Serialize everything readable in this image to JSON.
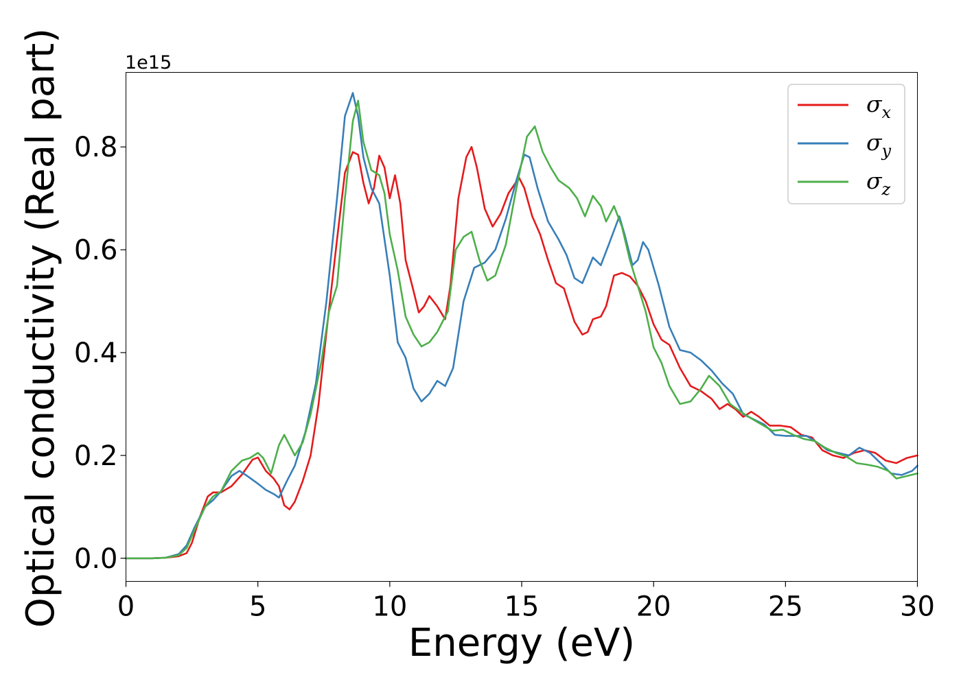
{
  "chart_data": {
    "type": "line",
    "title": "",
    "xlabel": "Energy (eV)",
    "ylabel": "Optical conductivity (Real part)",
    "offset_label": "1e15",
    "y_multiplier": 1000000000000000.0,
    "xlim": [
      0,
      30
    ],
    "ylim": [
      -0.045,
      0.945
    ],
    "x_ticks": [
      0,
      5,
      10,
      15,
      20,
      25,
      30
    ],
    "x_tick_labels": [
      "0",
      "5",
      "10",
      "15",
      "20",
      "25",
      "30"
    ],
    "y_ticks": [
      0.0,
      0.2,
      0.4,
      0.6,
      0.8
    ],
    "y_tick_labels": [
      "0.0",
      "0.2",
      "0.4",
      "0.6",
      "0.8"
    ],
    "grid": false,
    "legend_position": "top-right",
    "series": [
      {
        "name": "σ",
        "subscript": "x",
        "color": "#e41a1c",
        "points": [
          [
            0,
            0
          ],
          [
            1,
            0
          ],
          [
            1.5,
            0.001
          ],
          [
            2,
            0.004
          ],
          [
            2.3,
            0.01
          ],
          [
            2.5,
            0.03
          ],
          [
            2.8,
            0.08
          ],
          [
            3.1,
            0.12
          ],
          [
            3.3,
            0.128
          ],
          [
            3.6,
            0.128
          ],
          [
            4,
            0.14
          ],
          [
            4.4,
            0.163
          ],
          [
            4.8,
            0.192
          ],
          [
            5,
            0.196
          ],
          [
            5.3,
            0.17
          ],
          [
            5.6,
            0.155
          ],
          [
            5.8,
            0.14
          ],
          [
            6,
            0.103
          ],
          [
            6.2,
            0.095
          ],
          [
            6.4,
            0.11
          ],
          [
            6.7,
            0.15
          ],
          [
            7,
            0.2
          ],
          [
            7.3,
            0.3
          ],
          [
            7.6,
            0.44
          ],
          [
            8,
            0.62
          ],
          [
            8.3,
            0.75
          ],
          [
            8.6,
            0.79
          ],
          [
            8.8,
            0.785
          ],
          [
            9,
            0.73
          ],
          [
            9.2,
            0.69
          ],
          [
            9.4,
            0.72
          ],
          [
            9.6,
            0.783
          ],
          [
            9.8,
            0.76
          ],
          [
            10,
            0.7
          ],
          [
            10.2,
            0.745
          ],
          [
            10.4,
            0.69
          ],
          [
            10.6,
            0.58
          ],
          [
            10.9,
            0.52
          ],
          [
            11.1,
            0.478
          ],
          [
            11.3,
            0.49
          ],
          [
            11.5,
            0.51
          ],
          [
            11.8,
            0.49
          ],
          [
            12.1,
            0.465
          ],
          [
            12.3,
            0.53
          ],
          [
            12.6,
            0.7
          ],
          [
            12.9,
            0.78
          ],
          [
            13.1,
            0.8
          ],
          [
            13.3,
            0.76
          ],
          [
            13.6,
            0.68
          ],
          [
            13.9,
            0.645
          ],
          [
            14.2,
            0.67
          ],
          [
            14.5,
            0.71
          ],
          [
            14.9,
            0.74
          ],
          [
            15.1,
            0.72
          ],
          [
            15.4,
            0.665
          ],
          [
            15.7,
            0.63
          ],
          [
            16,
            0.58
          ],
          [
            16.3,
            0.535
          ],
          [
            16.6,
            0.525
          ],
          [
            17,
            0.46
          ],
          [
            17.3,
            0.435
          ],
          [
            17.5,
            0.44
          ],
          [
            17.7,
            0.465
          ],
          [
            18,
            0.47
          ],
          [
            18.2,
            0.49
          ],
          [
            18.5,
            0.55
          ],
          [
            18.8,
            0.555
          ],
          [
            19.1,
            0.548
          ],
          [
            19.4,
            0.53
          ],
          [
            19.7,
            0.5
          ],
          [
            20,
            0.455
          ],
          [
            20.3,
            0.425
          ],
          [
            20.6,
            0.415
          ],
          [
            21,
            0.37
          ],
          [
            21.4,
            0.335
          ],
          [
            21.8,
            0.325
          ],
          [
            22.2,
            0.31
          ],
          [
            22.5,
            0.29
          ],
          [
            22.8,
            0.3
          ],
          [
            23.1,
            0.29
          ],
          [
            23.4,
            0.275
          ],
          [
            23.7,
            0.285
          ],
          [
            24,
            0.275
          ],
          [
            24.4,
            0.258
          ],
          [
            24.8,
            0.258
          ],
          [
            25.2,
            0.255
          ],
          [
            25.6,
            0.24
          ],
          [
            26,
            0.235
          ],
          [
            26.4,
            0.21
          ],
          [
            26.8,
            0.2
          ],
          [
            27.2,
            0.195
          ],
          [
            27.6,
            0.205
          ],
          [
            28,
            0.21
          ],
          [
            28.4,
            0.205
          ],
          [
            28.8,
            0.19
          ],
          [
            29.2,
            0.185
          ],
          [
            29.6,
            0.195
          ],
          [
            30,
            0.2
          ]
        ]
      },
      {
        "name": "σ",
        "subscript": "y",
        "color": "#377eb8",
        "points": [
          [
            0,
            0
          ],
          [
            1,
            0
          ],
          [
            1.5,
            0.001
          ],
          [
            2,
            0.008
          ],
          [
            2.3,
            0.025
          ],
          [
            2.6,
            0.06
          ],
          [
            3,
            0.1
          ],
          [
            3.3,
            0.113
          ],
          [
            3.6,
            0.13
          ],
          [
            4,
            0.16
          ],
          [
            4.3,
            0.17
          ],
          [
            4.6,
            0.16
          ],
          [
            5,
            0.145
          ],
          [
            5.3,
            0.133
          ],
          [
            5.6,
            0.125
          ],
          [
            5.8,
            0.118
          ],
          [
            6.1,
            0.15
          ],
          [
            6.4,
            0.18
          ],
          [
            6.8,
            0.245
          ],
          [
            7.2,
            0.34
          ],
          [
            7.6,
            0.5
          ],
          [
            8,
            0.7
          ],
          [
            8.3,
            0.86
          ],
          [
            8.6,
            0.905
          ],
          [
            8.8,
            0.86
          ],
          [
            9,
            0.78
          ],
          [
            9.3,
            0.72
          ],
          [
            9.6,
            0.69
          ],
          [
            10,
            0.55
          ],
          [
            10.3,
            0.42
          ],
          [
            10.6,
            0.39
          ],
          [
            10.9,
            0.33
          ],
          [
            11.2,
            0.305
          ],
          [
            11.5,
            0.32
          ],
          [
            11.8,
            0.345
          ],
          [
            12.1,
            0.335
          ],
          [
            12.4,
            0.37
          ],
          [
            12.8,
            0.5
          ],
          [
            13.2,
            0.565
          ],
          [
            13.6,
            0.575
          ],
          [
            14,
            0.6
          ],
          [
            14.4,
            0.66
          ],
          [
            14.8,
            0.735
          ],
          [
            15.1,
            0.785
          ],
          [
            15.3,
            0.78
          ],
          [
            15.6,
            0.72
          ],
          [
            16,
            0.655
          ],
          [
            16.4,
            0.62
          ],
          [
            16.7,
            0.59
          ],
          [
            17,
            0.545
          ],
          [
            17.3,
            0.535
          ],
          [
            17.5,
            0.56
          ],
          [
            17.7,
            0.585
          ],
          [
            18,
            0.57
          ],
          [
            18.3,
            0.61
          ],
          [
            18.7,
            0.665
          ],
          [
            18.9,
            0.63
          ],
          [
            19.2,
            0.57
          ],
          [
            19.4,
            0.58
          ],
          [
            19.6,
            0.615
          ],
          [
            19.8,
            0.6
          ],
          [
            20.2,
            0.53
          ],
          [
            20.6,
            0.45
          ],
          [
            21,
            0.405
          ],
          [
            21.4,
            0.4
          ],
          [
            21.8,
            0.385
          ],
          [
            22.2,
            0.365
          ],
          [
            22.6,
            0.34
          ],
          [
            23,
            0.32
          ],
          [
            23.4,
            0.28
          ],
          [
            23.8,
            0.27
          ],
          [
            24.2,
            0.26
          ],
          [
            24.6,
            0.24
          ],
          [
            25,
            0.238
          ],
          [
            25.4,
            0.238
          ],
          [
            25.8,
            0.238
          ],
          [
            26.2,
            0.225
          ],
          [
            26.6,
            0.21
          ],
          [
            27,
            0.205
          ],
          [
            27.4,
            0.2
          ],
          [
            27.8,
            0.215
          ],
          [
            28.2,
            0.205
          ],
          [
            28.6,
            0.185
          ],
          [
            29,
            0.165
          ],
          [
            29.4,
            0.162
          ],
          [
            29.8,
            0.17
          ],
          [
            30,
            0.18
          ]
        ]
      },
      {
        "name": "σ",
        "subscript": "z",
        "color": "#4daf4a",
        "points": [
          [
            0,
            0
          ],
          [
            1,
            0
          ],
          [
            1.5,
            0.001
          ],
          [
            2,
            0.006
          ],
          [
            2.3,
            0.02
          ],
          [
            2.6,
            0.055
          ],
          [
            3,
            0.1
          ],
          [
            3.3,
            0.12
          ],
          [
            3.6,
            0.13
          ],
          [
            4,
            0.17
          ],
          [
            4.4,
            0.19
          ],
          [
            4.7,
            0.195
          ],
          [
            5,
            0.205
          ],
          [
            5.2,
            0.195
          ],
          [
            5.5,
            0.165
          ],
          [
            5.8,
            0.22
          ],
          [
            6,
            0.24
          ],
          [
            6.2,
            0.22
          ],
          [
            6.4,
            0.2
          ],
          [
            6.7,
            0.225
          ],
          [
            7,
            0.28
          ],
          [
            7.4,
            0.38
          ],
          [
            7.7,
            0.48
          ],
          [
            8,
            0.53
          ],
          [
            8.3,
            0.7
          ],
          [
            8.6,
            0.85
          ],
          [
            8.8,
            0.89
          ],
          [
            9,
            0.81
          ],
          [
            9.3,
            0.755
          ],
          [
            9.6,
            0.745
          ],
          [
            9.8,
            0.71
          ],
          [
            10,
            0.63
          ],
          [
            10.3,
            0.56
          ],
          [
            10.6,
            0.47
          ],
          [
            10.9,
            0.435
          ],
          [
            11.2,
            0.412
          ],
          [
            11.5,
            0.42
          ],
          [
            11.8,
            0.44
          ],
          [
            12.2,
            0.48
          ],
          [
            12.5,
            0.6
          ],
          [
            12.8,
            0.625
          ],
          [
            13.1,
            0.635
          ],
          [
            13.4,
            0.58
          ],
          [
            13.7,
            0.54
          ],
          [
            14,
            0.55
          ],
          [
            14.4,
            0.61
          ],
          [
            14.8,
            0.72
          ],
          [
            15.2,
            0.82
          ],
          [
            15.5,
            0.84
          ],
          [
            15.8,
            0.79
          ],
          [
            16.1,
            0.76
          ],
          [
            16.4,
            0.735
          ],
          [
            16.8,
            0.72
          ],
          [
            17.1,
            0.7
          ],
          [
            17.4,
            0.665
          ],
          [
            17.7,
            0.705
          ],
          [
            18,
            0.685
          ],
          [
            18.2,
            0.655
          ],
          [
            18.5,
            0.685
          ],
          [
            18.8,
            0.645
          ],
          [
            19.1,
            0.58
          ],
          [
            19.4,
            0.53
          ],
          [
            19.7,
            0.48
          ],
          [
            20,
            0.41
          ],
          [
            20.3,
            0.38
          ],
          [
            20.6,
            0.335
          ],
          [
            21,
            0.3
          ],
          [
            21.4,
            0.305
          ],
          [
            21.8,
            0.33
          ],
          [
            22.1,
            0.355
          ],
          [
            22.5,
            0.335
          ],
          [
            22.9,
            0.3
          ],
          [
            23.3,
            0.285
          ],
          [
            23.7,
            0.272
          ],
          [
            24.1,
            0.26
          ],
          [
            24.5,
            0.248
          ],
          [
            24.9,
            0.25
          ],
          [
            25.3,
            0.24
          ],
          [
            25.7,
            0.232
          ],
          [
            26.1,
            0.228
          ],
          [
            26.5,
            0.215
          ],
          [
            26.9,
            0.205
          ],
          [
            27.3,
            0.198
          ],
          [
            27.7,
            0.185
          ],
          [
            28.1,
            0.182
          ],
          [
            28.5,
            0.178
          ],
          [
            28.9,
            0.17
          ],
          [
            29.2,
            0.155
          ],
          [
            29.6,
            0.16
          ],
          [
            30,
            0.165
          ]
        ]
      }
    ]
  }
}
